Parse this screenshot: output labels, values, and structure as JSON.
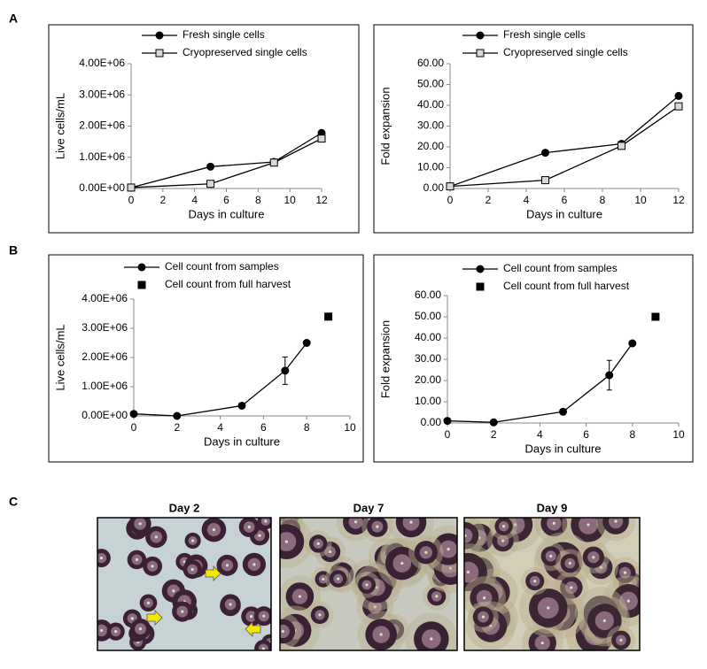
{
  "panels": [
    "A",
    "B",
    "C"
  ],
  "chart_data": [
    {
      "type": "line",
      "ylabel": "Live cells/mL",
      "xlabel": "Days in culture",
      "x": [
        0,
        5,
        9,
        12
      ],
      "xlim": [
        0,
        12
      ],
      "xticks": [
        0,
        2,
        4,
        6,
        8,
        10,
        12
      ],
      "ylim": [
        0,
        4000000
      ],
      "yticks": [
        {
          "value": 0,
          "label": "0.00E+00"
        },
        {
          "value": 1000000,
          "label": "1.00E+06"
        },
        {
          "value": 2000000,
          "label": "2.00E+06"
        },
        {
          "value": 3000000,
          "label": "3.00E+06"
        },
        {
          "value": 4000000,
          "label": "4.00E+06"
        }
      ],
      "series": [
        {
          "name": "Fresh single cells",
          "color": "#000000",
          "marker": "circle",
          "marker_fill": "#000000",
          "values": [
            30000,
            700000,
            850000,
            1780000
          ]
        },
        {
          "name": "Cryopreserved single cells",
          "color": "#000000",
          "marker": "square",
          "marker_fill": "#d9d9d9",
          "values": [
            30000,
            150000,
            830000,
            1600000
          ]
        }
      ]
    },
    {
      "type": "line",
      "ylabel": "Fold expansion",
      "xlabel": "Days in culture",
      "x": [
        0,
        5,
        9,
        12
      ],
      "xlim": [
        0,
        12
      ],
      "xticks": [
        0,
        2,
        4,
        6,
        8,
        10,
        12
      ],
      "ylim": [
        0,
        60
      ],
      "yticks": [
        {
          "value": 0,
          "label": "0.00"
        },
        {
          "value": 10,
          "label": "10.00"
        },
        {
          "value": 20,
          "label": "20.00"
        },
        {
          "value": 30,
          "label": "30.00"
        },
        {
          "value": 40,
          "label": "40.00"
        },
        {
          "value": 50,
          "label": "50.00"
        },
        {
          "value": 60,
          "label": "60.00"
        }
      ],
      "series": [
        {
          "name": "Fresh single cells",
          "color": "#000000",
          "marker": "circle",
          "marker_fill": "#000000",
          "values": [
            1,
            17.2,
            21.5,
            44.5
          ]
        },
        {
          "name": "Cryopreserved single cells",
          "color": "#000000",
          "marker": "square",
          "marker_fill": "#d9d9d9",
          "values": [
            1,
            4,
            20.5,
            39.5
          ]
        }
      ]
    },
    {
      "type": "line",
      "ylabel": "Live cells/mL",
      "xlabel": "Days in culture",
      "xlim": [
        0,
        10
      ],
      "xticks": [
        0,
        2,
        4,
        6,
        8,
        10
      ],
      "ylim": [
        0,
        4000000
      ],
      "yticks": [
        {
          "value": 0,
          "label": "0.00E+00"
        },
        {
          "value": 1000000,
          "label": "1.00E+06"
        },
        {
          "value": 2000000,
          "label": "2.00E+06"
        },
        {
          "value": 3000000,
          "label": "3.00E+06"
        },
        {
          "value": 4000000,
          "label": "4.00E+06"
        }
      ],
      "series": [
        {
          "name": "Cell count from samples",
          "color": "#000000",
          "marker": "circle",
          "marker_fill": "#000000",
          "show_line": true,
          "x": [
            0,
            2,
            5,
            7,
            8
          ],
          "values": [
            70000,
            0,
            350000,
            1550000,
            2500000
          ],
          "errors": [
            null,
            null,
            null,
            470000,
            null
          ]
        },
        {
          "name": "Cell count from full harvest",
          "color": "#000000",
          "marker": "square",
          "marker_fill": "#000000",
          "show_line": false,
          "x": [
            9
          ],
          "values": [
            3400000
          ]
        }
      ]
    },
    {
      "type": "line",
      "ylabel": "Fold expansion",
      "xlabel": "Days in culture",
      "xlim": [
        0,
        10
      ],
      "xticks": [
        0,
        2,
        4,
        6,
        8,
        10
      ],
      "ylim": [
        0,
        60
      ],
      "yticks": [
        {
          "value": 0,
          "label": "0.00"
        },
        {
          "value": 10,
          "label": "10.00"
        },
        {
          "value": 20,
          "label": "20.00"
        },
        {
          "value": 30,
          "label": "30.00"
        },
        {
          "value": 40,
          "label": "40.00"
        },
        {
          "value": 50,
          "label": "50.00"
        },
        {
          "value": 60,
          "label": "60.00"
        }
      ],
      "series": [
        {
          "name": "Cell count from samples",
          "color": "#000000",
          "marker": "circle",
          "marker_fill": "#000000",
          "show_line": true,
          "x": [
            0,
            2,
            5,
            7,
            8
          ],
          "values": [
            1,
            0.3,
            5.3,
            22.5,
            37.5
          ],
          "errors": [
            null,
            null,
            null,
            7,
            null
          ]
        },
        {
          "name": "Cell count from full harvest",
          "color": "#000000",
          "marker": "square",
          "marker_fill": "#000000",
          "show_line": false,
          "x": [
            9
          ],
          "values": [
            50
          ]
        }
      ]
    }
  ],
  "images": [
    {
      "title": "Day 2"
    },
    {
      "title": "Day 7"
    },
    {
      "title": "Day 9"
    }
  ]
}
